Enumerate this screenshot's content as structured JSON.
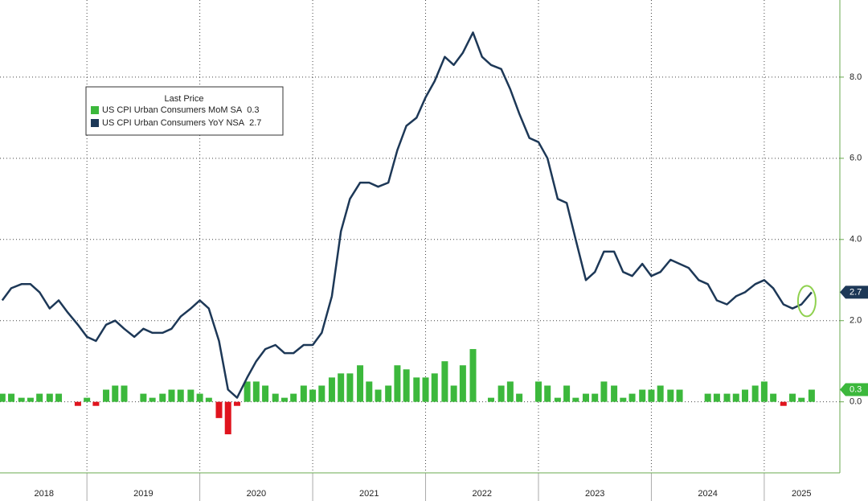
{
  "chart_data": {
    "type": "combo",
    "legend_title": "Last Price",
    "legend": "upper left",
    "grid": true,
    "x": [
      2018.25,
      2018.33,
      2018.42,
      2018.5,
      2018.58,
      2018.67,
      2018.75,
      2018.83,
      2018.92,
      2019.0,
      2019.08,
      2019.17,
      2019.25,
      2019.33,
      2019.42,
      2019.5,
      2019.58,
      2019.67,
      2019.75,
      2019.83,
      2019.92,
      2020.0,
      2020.08,
      2020.17,
      2020.25,
      2020.33,
      2020.42,
      2020.5,
      2020.58,
      2020.67,
      2020.75,
      2020.83,
      2020.92,
      2021.0,
      2021.08,
      2021.17,
      2021.25,
      2021.33,
      2021.42,
      2021.5,
      2021.58,
      2021.67,
      2021.75,
      2021.83,
      2021.92,
      2022.0,
      2022.08,
      2022.17,
      2022.25,
      2022.33,
      2022.42,
      2022.5,
      2022.58,
      2022.67,
      2022.75,
      2022.83,
      2022.92,
      2023.0,
      2023.08,
      2023.17,
      2023.25,
      2023.33,
      2023.42,
      2023.5,
      2023.58,
      2023.67,
      2023.75,
      2023.83,
      2023.92,
      2024.0,
      2024.08,
      2024.17,
      2024.25,
      2024.33,
      2024.42,
      2024.5,
      2024.58,
      2024.67,
      2024.75,
      2024.83,
      2024.92,
      2025.0,
      2025.08,
      2025.17,
      2025.25,
      2025.33,
      2025.42
    ],
    "xlim": [
      2018.23,
      2025.67
    ],
    "xgrid": [
      2019,
      2020,
      2021,
      2022,
      2023,
      2024,
      2025
    ],
    "xticks": [
      {
        "value": 2018.62,
        "label": "2018"
      },
      {
        "value": 2019.5,
        "label": "2019"
      },
      {
        "value": 2020.5,
        "label": "2020"
      },
      {
        "value": 2021.5,
        "label": "2021"
      },
      {
        "value": 2022.5,
        "label": "2022"
      },
      {
        "value": 2023.5,
        "label": "2023"
      },
      {
        "value": 2024.5,
        "label": "2024"
      },
      {
        "value": 2025.33,
        "label": "2025"
      }
    ],
    "ylim": [
      -1.75,
      9.9
    ],
    "yticks": [
      {
        "value": 0,
        "label": "0.0"
      },
      {
        "value": 2,
        "label": "2.0"
      },
      {
        "value": 4,
        "label": "4.0"
      },
      {
        "value": 6,
        "label": "6.0"
      },
      {
        "value": 8,
        "label": "8.0"
      }
    ],
    "series": [
      {
        "name": "US CPI Urban Consumers MoM SA",
        "type": "bar",
        "color": "#3cb83c",
        "negative_color": "#e0141e",
        "values": [
          0.2,
          0.2,
          0.1,
          0.1,
          0.2,
          0.2,
          0.2,
          0.0,
          -0.1,
          0.1,
          -0.1,
          0.3,
          0.4,
          0.4,
          0.0,
          0.2,
          0.1,
          0.2,
          0.3,
          0.3,
          0.3,
          0.2,
          0.1,
          -0.4,
          -0.8,
          -0.1,
          0.5,
          0.5,
          0.4,
          0.2,
          0.1,
          0.2,
          0.4,
          0.3,
          0.4,
          0.6,
          0.7,
          0.7,
          0.9,
          0.5,
          0.3,
          0.4,
          0.9,
          0.8,
          0.6,
          0.6,
          0.7,
          1.0,
          0.4,
          0.9,
          1.3,
          0.0,
          0.1,
          0.4,
          0.5,
          0.2,
          0.0,
          0.5,
          0.4,
          0.1,
          0.4,
          0.1,
          0.2,
          0.2,
          0.5,
          0.4,
          0.1,
          0.2,
          0.3,
          0.3,
          0.4,
          0.3,
          0.3,
          0.0,
          0.0,
          0.2,
          0.2,
          0.2,
          0.2,
          0.3,
          0.4,
          0.5,
          0.2,
          -0.1,
          0.2,
          0.1,
          0.3
        ]
      },
      {
        "name": "US CPI Urban Consumers YoY NSA",
        "type": "line",
        "color": "#1d3857",
        "values": [
          2.5,
          2.8,
          2.9,
          2.9,
          2.7,
          2.3,
          2.5,
          2.2,
          1.9,
          1.6,
          1.5,
          1.9,
          2.0,
          1.8,
          1.6,
          1.8,
          1.7,
          1.7,
          1.8,
          2.1,
          2.3,
          2.5,
          2.3,
          1.5,
          0.3,
          0.1,
          0.6,
          1.0,
          1.3,
          1.4,
          1.2,
          1.2,
          1.4,
          1.4,
          1.7,
          2.6,
          4.2,
          5.0,
          5.4,
          5.4,
          5.3,
          5.4,
          6.2,
          6.8,
          7.0,
          7.5,
          7.9,
          8.5,
          8.3,
          8.6,
          9.1,
          8.5,
          8.3,
          8.2,
          7.7,
          7.1,
          6.5,
          6.4,
          6.0,
          5.0,
          4.9,
          4.0,
          3.0,
          3.2,
          3.7,
          3.7,
          3.2,
          3.1,
          3.4,
          3.1,
          3.2,
          3.5,
          3.4,
          3.3,
          3.0,
          2.9,
          2.5,
          2.4,
          2.6,
          2.7,
          2.9,
          3.0,
          2.8,
          2.4,
          2.3,
          2.4,
          2.7
        ]
      }
    ]
  }
}
